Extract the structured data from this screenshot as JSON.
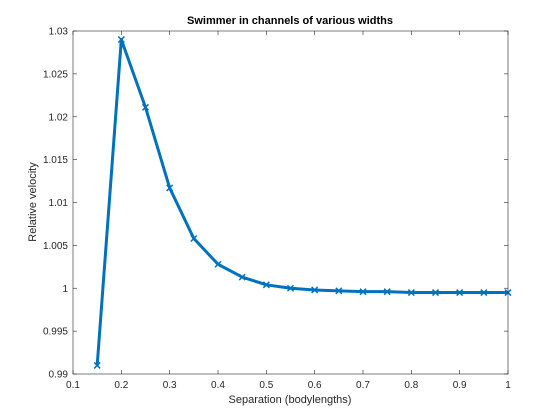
{
  "chart_data": {
    "type": "line",
    "title": "Swimmer in channels of various widths",
    "xlabel": "Separation (bodylengths)",
    "ylabel": "Relative velocity",
    "xlim": [
      0.1,
      1
    ],
    "ylim": [
      0.99,
      1.03
    ],
    "xticks": [
      "0.1",
      "0.2",
      "0.3",
      "0.4",
      "0.5",
      "0.6",
      "0.7",
      "0.8",
      "0.9",
      "1"
    ],
    "yticks": [
      "0.99",
      "0.995",
      "1",
      "1.005",
      "1.01",
      "1.015",
      "1.02",
      "1.025",
      "1.03"
    ],
    "grid": false,
    "marker": "x",
    "color": "#0072BD",
    "series": [
      {
        "x": [
          0.15,
          0.2,
          0.25,
          0.3,
          0.35,
          0.4,
          0.45,
          0.5,
          0.55,
          0.6,
          0.65,
          0.7,
          0.75,
          0.8,
          0.85,
          0.9,
          0.95,
          1.0
        ],
        "values": [
          0.991,
          1.029,
          1.0211,
          1.0117,
          1.0058,
          1.0028,
          1.0013,
          1.0004,
          1.0,
          0.9998,
          0.9997,
          0.9996,
          0.9996,
          0.9995,
          0.9995,
          0.9995,
          0.9995,
          0.9995
        ]
      }
    ]
  }
}
